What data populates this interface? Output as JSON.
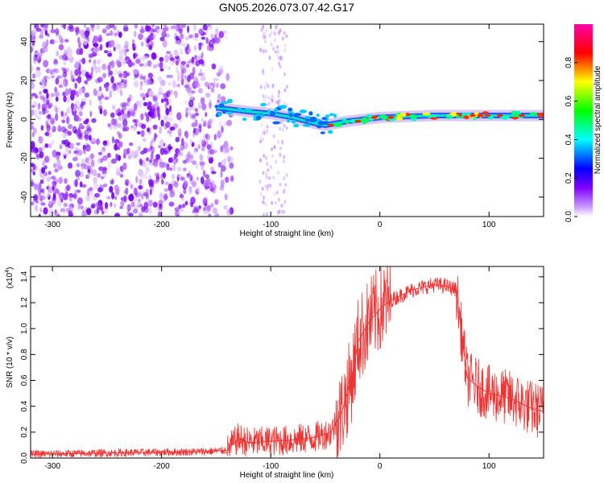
{
  "figure_title": "GN05.2026.073.07.42.G17",
  "chart_data": [
    {
      "type": "heatmap",
      "title": "GN05.2026.073.07.42.G17",
      "xlabel": "Height of straight line (km)",
      "ylabel": "Frequency (Hz)",
      "xlim": [
        -320,
        150
      ],
      "ylim": [
        -50,
        49
      ],
      "x_ticks": [
        -300,
        -200,
        -100,
        0,
        100
      ],
      "x_tick_labels": [
        "-300",
        "-200",
        "-100",
        "0",
        "100"
      ],
      "y_ticks": [
        -40,
        -20,
        0,
        20,
        40
      ],
      "y_tick_labels": [
        "-40",
        "-20",
        "0",
        "20",
        "40"
      ],
      "colorbar": {
        "label": "Normalized spectral amplitude",
        "range": [
          0,
          1
        ],
        "ticks": [
          0,
          0.2,
          0.4,
          0.6,
          0.8
        ],
        "tick_labels": [
          "0.0",
          "0.2",
          "0.4",
          "0.6",
          "0.8"
        ],
        "colormap": [
          "#ffffff",
          "#8000ff",
          "#0000ff",
          "#00ffff",
          "#00ff00",
          "#ffff00",
          "#ff0000",
          "#ff00aa"
        ]
      },
      "features": {
        "noise_region_x": [
          -320,
          -150
        ],
        "signal_trace": [
          {
            "x": -150,
            "y": 6
          },
          {
            "x": -120,
            "y": 4
          },
          {
            "x": -100,
            "y": 3
          },
          {
            "x": -80,
            "y": 1
          },
          {
            "x": -60,
            "y": -2
          },
          {
            "x": -50,
            "y": -3
          },
          {
            "x": -30,
            "y": -1
          },
          {
            "x": 0,
            "y": 1
          },
          {
            "x": 50,
            "y": 2
          },
          {
            "x": 100,
            "y": 2
          },
          {
            "x": 150,
            "y": 2
          }
        ]
      }
    },
    {
      "type": "line",
      "title": "",
      "xlabel": "Height of straight line (km)",
      "ylabel": "SNR (10 * v/v)",
      "scale_note": "(x10",
      "scale_exp": "4",
      "xlim": [
        -320,
        150
      ],
      "ylim": [
        0,
        1.48
      ],
      "x_ticks": [
        -300,
        -200,
        -100,
        0,
        100
      ],
      "x_tick_labels": [
        "-300",
        "-200",
        "-100",
        "0",
        "100"
      ],
      "y_ticks": [
        0,
        0.2,
        0.4,
        0.6,
        0.8,
        1.0,
        1.2,
        1.4
      ],
      "y_tick_labels": [
        "0.0",
        "0.2",
        "0.4",
        "0.6",
        "0.8",
        "1.0",
        "1.2",
        "1.4"
      ],
      "color": "#ee3333",
      "series": [
        {
          "name": "SNR",
          "x": [
            -320,
            -280,
            -240,
            -200,
            -160,
            -140,
            -130,
            -120,
            -100,
            -80,
            -60,
            -45,
            -35,
            -25,
            -20,
            -10,
            0,
            10,
            20,
            30,
            40,
            50,
            60,
            70,
            75,
            80,
            90,
            100,
            110,
            120,
            130,
            140,
            150
          ],
          "y": [
            0.03,
            0.035,
            0.04,
            0.045,
            0.05,
            0.06,
            0.15,
            0.12,
            0.13,
            0.14,
            0.16,
            0.2,
            0.35,
            0.65,
            0.9,
            1.05,
            1.15,
            1.22,
            1.26,
            1.3,
            1.32,
            1.34,
            1.33,
            1.3,
            0.95,
            0.62,
            0.55,
            0.5,
            0.48,
            0.46,
            0.42,
            0.38,
            0.36
          ]
        }
      ]
    }
  ]
}
